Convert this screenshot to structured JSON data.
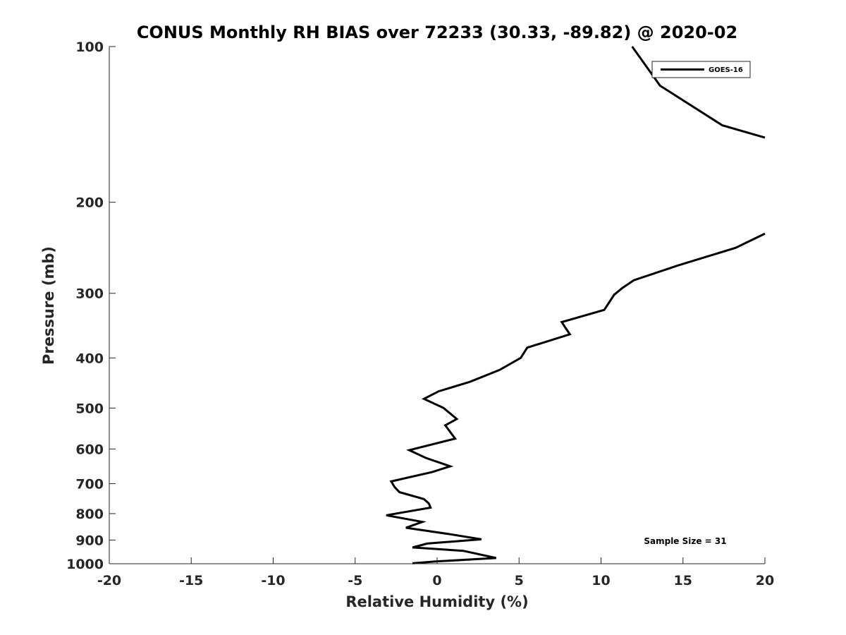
{
  "chart_data": {
    "type": "line",
    "title": "CONUS Monthly RH BIAS over 72233 (30.33, -89.82) @ 2020-02",
    "xlabel": "Relative Humidity (%)",
    "ylabel": "Pressure (mb)",
    "xlim": [
      -20,
      20
    ],
    "ylim": [
      100,
      1000
    ],
    "yscale": "log",
    "yreversed": true,
    "grid": false,
    "legend_position": "top-right",
    "x_ticks": [
      -20,
      -15,
      -10,
      -5,
      0,
      5,
      10,
      15,
      20
    ],
    "x_tick_labels": [
      "-20",
      "-15",
      "-10",
      "-5",
      "0",
      "5",
      "10",
      "15",
      "20"
    ],
    "y_ticks": [
      100,
      200,
      300,
      400,
      500,
      600,
      700,
      800,
      900,
      1000
    ],
    "y_tick_labels": [
      "100",
      "200",
      "300",
      "400",
      "500",
      "600",
      "700",
      "800",
      "900",
      "1000"
    ],
    "annotation": "Sample Size = 31",
    "series": [
      {
        "name": "GOES-16",
        "color": "#000000",
        "segments": [
          [
            [
              11.9,
              100
            ],
            [
              13.6,
              119
            ],
            [
              17.4,
              142
            ],
            [
              20.0,
              150
            ]
          ],
          [
            [
              20.0,
              230
            ],
            [
              18.2,
              245
            ],
            [
              14.7,
              265
            ],
            [
              12.0,
              283
            ],
            [
              11.3,
              293
            ],
            [
              10.8,
              302
            ],
            [
              10.2,
              323
            ],
            [
              7.6,
              341
            ],
            [
              8.1,
              360
            ],
            [
              5.5,
              382
            ],
            [
              5.1,
              400
            ],
            [
              3.8,
              422
            ],
            [
              2.0,
              445
            ],
            [
              0.1,
              464
            ],
            [
              -0.8,
              480
            ],
            [
              0.4,
              500
            ],
            [
              1.2,
              525
            ],
            [
              0.5,
              540
            ],
            [
              1.1,
              573
            ],
            [
              -1.7,
              603
            ],
            [
              -0.7,
              624
            ],
            [
              0.8,
              648
            ],
            [
              -0.3,
              665
            ],
            [
              -2.8,
              693
            ],
            [
              -2.6,
              710
            ],
            [
              -2.3,
              727
            ],
            [
              -0.8,
              750
            ],
            [
              -0.5,
              765
            ],
            [
              -0.4,
              779
            ],
            [
              -3.1,
              806
            ],
            [
              -0.9,
              830
            ],
            [
              -1.9,
              852
            ],
            [
              0.8,
              877
            ],
            [
              2.7,
              897
            ],
            [
              -0.6,
              914
            ],
            [
              -1.5,
              930
            ],
            [
              1.6,
              944
            ],
            [
              3.6,
              975
            ],
            [
              -0.1,
              990
            ],
            [
              -1.5,
              998
            ]
          ]
        ]
      }
    ]
  }
}
